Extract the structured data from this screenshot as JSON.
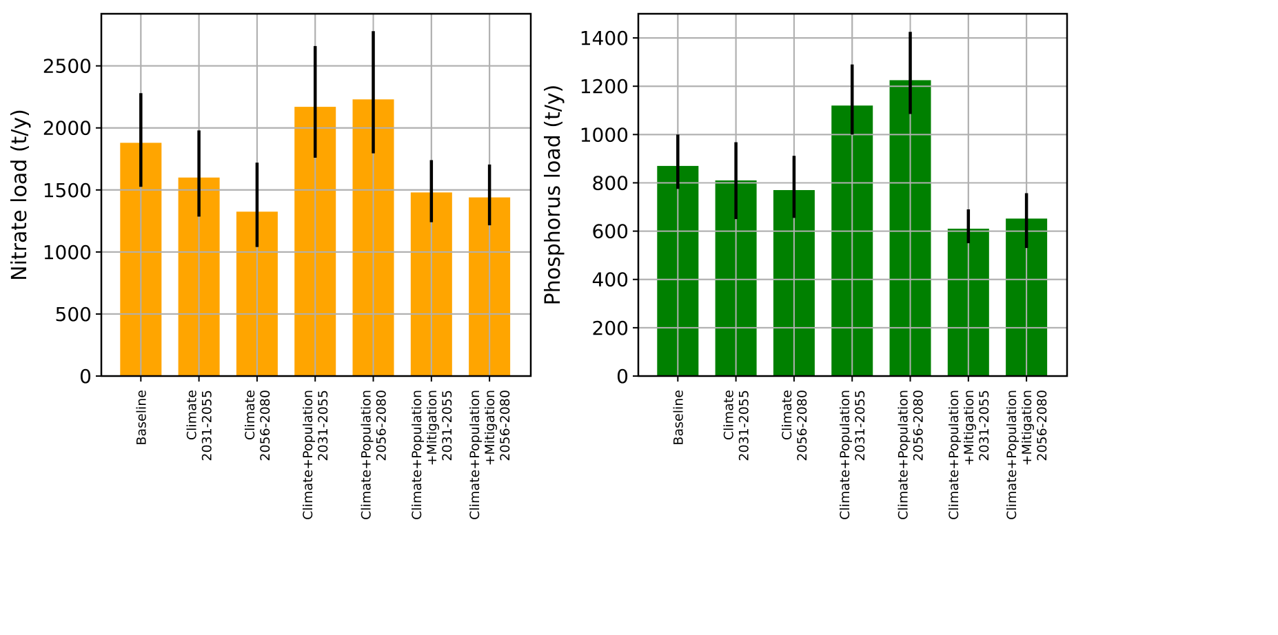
{
  "chart_data": [
    {
      "type": "bar",
      "title": "",
      "xlabel": "",
      "ylabel": "Nitrate load (t/y)",
      "ylim": [
        0,
        2920
      ],
      "yticks": [
        0,
        500,
        1000,
        1500,
        2000,
        2500
      ],
      "bar_color": "#ffa500",
      "grid": true,
      "categories": [
        [
          "Baseline"
        ],
        [
          "Climate",
          "2031-2055"
        ],
        [
          "Climate",
          "2056-2080"
        ],
        [
          "Climate+Population",
          "2031-2055"
        ],
        [
          "Climate+Population",
          "2056-2080"
        ],
        [
          "Climate+Population",
          "+Mitigation",
          "2031-2055"
        ],
        [
          "Climate+Population",
          "+Mitigation",
          "2056-2080"
        ]
      ],
      "values": [
        1880,
        1600,
        1325,
        2170,
        2230,
        1480,
        1440
      ],
      "error_low": [
        1525,
        1285,
        1040,
        1760,
        1795,
        1240,
        1215
      ],
      "error_high": [
        2280,
        1980,
        1720,
        2660,
        2780,
        1740,
        1705
      ]
    },
    {
      "type": "bar",
      "title": "",
      "xlabel": "",
      "ylabel": "Phosphorus load (t/y)",
      "ylim": [
        0,
        1500
      ],
      "yticks": [
        0,
        200,
        400,
        600,
        800,
        1000,
        1200,
        1400
      ],
      "bar_color": "#008000",
      "grid": true,
      "categories": [
        [
          "Baseline"
        ],
        [
          "Climate",
          "2031-2055"
        ],
        [
          "Climate",
          "2056-2080"
        ],
        [
          "Climate+Population",
          "2031-2055"
        ],
        [
          "Climate+Population",
          "2056-2080"
        ],
        [
          "Climate+Population",
          "+Mitigation",
          "2031-2055"
        ],
        [
          "Climate+Population",
          "+Mitigation",
          "2056-2080"
        ]
      ],
      "values": [
        870,
        810,
        770,
        1120,
        1225,
        610,
        652
      ],
      "error_low": [
        775,
        650,
        655,
        1000,
        1085,
        550,
        530
      ],
      "error_high": [
        1000,
        968,
        912,
        1290,
        1425,
        690,
        757
      ]
    }
  ]
}
